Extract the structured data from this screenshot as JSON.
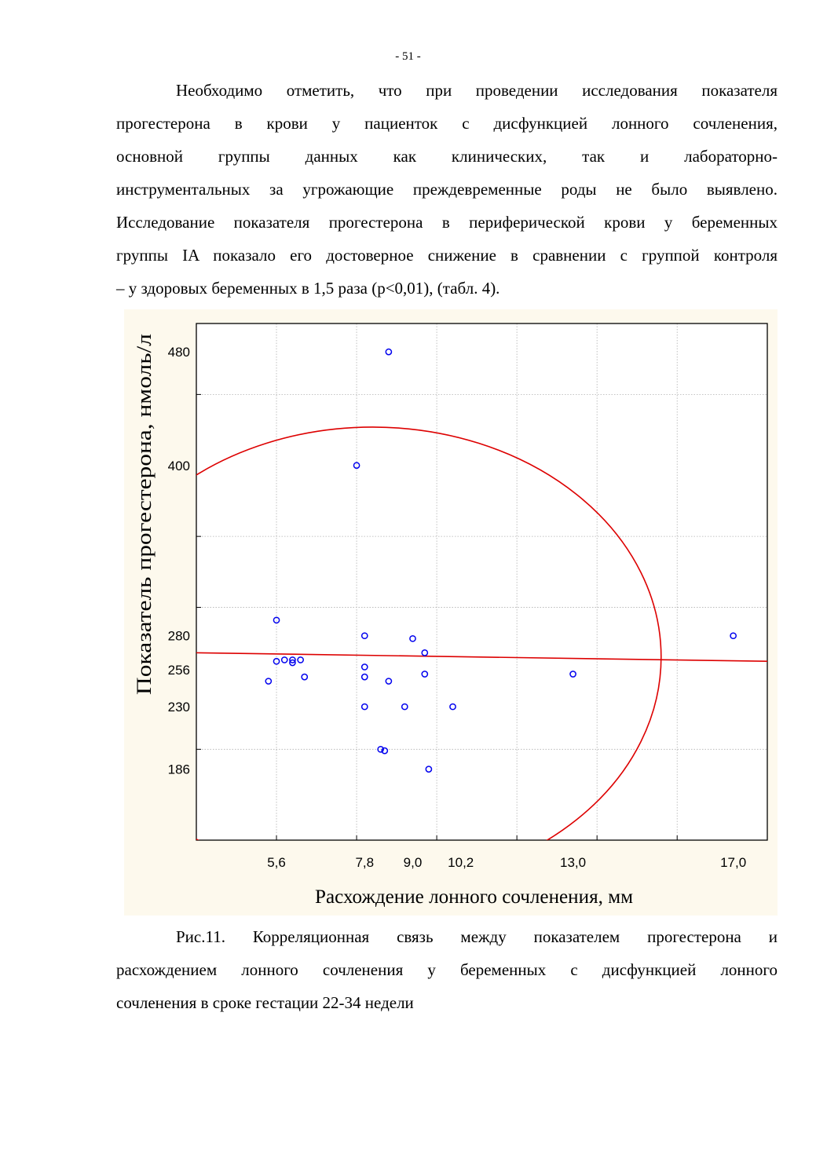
{
  "page": {
    "number": "- 51 -"
  },
  "body_text": {
    "lines": [
      "Необходимо отметить, что при проведении исследования показателя",
      "прогестерона в крови у пациенток с дисфункцией лонного сочленения,",
      "основной группы данных как клинических, так и лабораторно-",
      "инструментальных за угрожающие преждевременные роды не было выявлено.",
      "Исследование показателя прогестерона в периферической крови у беременных",
      "группы IA показало его достоверное снижение в сравнении с группой контроля",
      "– у здоровых беременных в 1,5 раза (p<0,01), (табл. 4)."
    ]
  },
  "chart_data": {
    "type": "scatter",
    "xlabel": "Расхождение лонного сочленения, мм",
    "ylabel": "Показатель прогестерона, нмоль/л",
    "xlim": [
      3.6,
      17.85
    ],
    "ylim": [
      136,
      500
    ],
    "x_ticks": [
      5.6,
      7.8,
      9.0,
      10.2,
      13.0,
      17.0
    ],
    "x_tick_labels": [
      "5,6",
      "7,8",
      "9,0",
      "10,2",
      "13,0",
      "17,0"
    ],
    "y_ticks": [
      186,
      230,
      256,
      280,
      400,
      480
    ],
    "y_tick_labels": [
      "186",
      "230",
      "256",
      "280",
      "400",
      "480"
    ],
    "x_grid": [
      5.6,
      7.6,
      9.6,
      11.6,
      13.6,
      15.6
    ],
    "y_grid": [
      200,
      300,
      350,
      450
    ],
    "grid": true,
    "colors": {
      "points": "#0000ee",
      "fit": "#dd0000",
      "background": "#fdf9ed"
    },
    "points": [
      {
        "x": 5.4,
        "y": 248
      },
      {
        "x": 5.6,
        "y": 262
      },
      {
        "x": 5.6,
        "y": 291
      },
      {
        "x": 5.8,
        "y": 263
      },
      {
        "x": 6.0,
        "y": 263
      },
      {
        "x": 6.0,
        "y": 261
      },
      {
        "x": 6.2,
        "y": 263
      },
      {
        "x": 6.3,
        "y": 251
      },
      {
        "x": 7.6,
        "y": 400
      },
      {
        "x": 7.8,
        "y": 280
      },
      {
        "x": 7.8,
        "y": 258
      },
      {
        "x": 7.8,
        "y": 251
      },
      {
        "x": 7.8,
        "y": 230
      },
      {
        "x": 8.2,
        "y": 200
      },
      {
        "x": 8.3,
        "y": 199
      },
      {
        "x": 8.4,
        "y": 480
      },
      {
        "x": 8.4,
        "y": 248
      },
      {
        "x": 8.8,
        "y": 230
      },
      {
        "x": 9.0,
        "y": 278
      },
      {
        "x": 9.3,
        "y": 268
      },
      {
        "x": 9.3,
        "y": 253
      },
      {
        "x": 9.4,
        "y": 186
      },
      {
        "x": 10.0,
        "y": 230
      },
      {
        "x": 13.0,
        "y": 253
      },
      {
        "x": 17.0,
        "y": 280
      }
    ],
    "fit_line": {
      "x": [
        3.6,
        17.85
      ],
      "y": [
        268,
        262
      ]
    },
    "ellipse": {
      "cx": 8.0,
      "cy": 265,
      "rx": 7.2,
      "ry": 162
    }
  },
  "figure_caption": {
    "lines": [
      "Рис.11. Корреляционная связь между показателем прогестерона и",
      "расхождением лонного сочленения у беременных с дисфункцией лонного",
      "сочленения в сроке гестации 22-34 недели"
    ]
  }
}
